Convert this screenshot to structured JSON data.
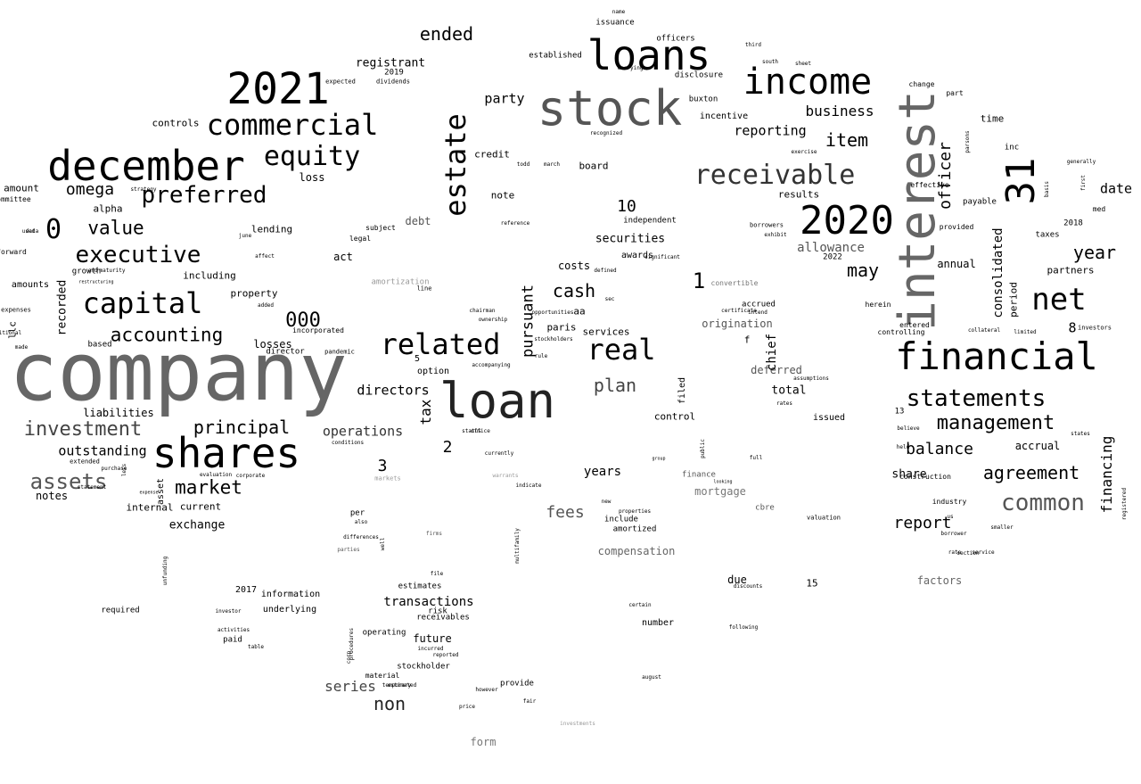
{
  "words": [
    {
      "text": "company",
      "color": "#666666"
    },
    {
      "text": "stock",
      "color": "#555555"
    },
    {
      "text": "loan",
      "color": "#222222"
    },
    {
      "text": "interest",
      "color": "#666666"
    },
    {
      "text": "2021",
      "color": "#000000"
    },
    {
      "text": "december",
      "color": "#000000"
    },
    {
      "text": "shares",
      "color": "#000000"
    },
    {
      "text": "loans",
      "color": "#000000"
    },
    {
      "text": "income",
      "color": "#000000"
    },
    {
      "text": "2020",
      "color": "#000000"
    },
    {
      "text": "31",
      "color": "#000000"
    },
    {
      "text": "financial",
      "color": "#000000"
    },
    {
      "text": "commercial",
      "color": "#000000"
    },
    {
      "text": "capital",
      "color": "#000000"
    },
    {
      "text": "estate",
      "color": "#000000"
    },
    {
      "text": "related",
      "color": "#000000"
    },
    {
      "text": "real",
      "color": "#000000"
    },
    {
      "text": "net",
      "color": "#000000"
    },
    {
      "text": "receivable",
      "color": "#333333"
    },
    {
      "text": "statements",
      "color": "#000000"
    },
    {
      "text": "equity",
      "color": "#000000"
    },
    {
      "text": "preferred",
      "color": "#000000"
    },
    {
      "text": "executive",
      "color": "#000000"
    },
    {
      "text": "management",
      "color": "#000000"
    },
    {
      "text": "common",
      "color": "#555555"
    },
    {
      "text": "accounting",
      "color": "#000000"
    },
    {
      "text": "investment",
      "color": "#444444"
    },
    {
      "text": "assets",
      "color": "#555555"
    },
    {
      "text": "market",
      "color": "#000000"
    },
    {
      "text": "value",
      "color": "#000000"
    },
    {
      "text": "principal",
      "color": "#000000"
    },
    {
      "text": "agreement",
      "color": "#000000"
    },
    {
      "text": "officer",
      "color": "#000000"
    },
    {
      "text": "item",
      "color": "#000000"
    },
    {
      "text": "cash",
      "color": "#000000"
    },
    {
      "text": "may",
      "color": "#000000"
    },
    {
      "text": "year",
      "color": "#000000"
    },
    {
      "text": "balance",
      "color": "#000000"
    },
    {
      "text": "report",
      "color": "#000000"
    },
    {
      "text": "ended",
      "color": "#000000"
    },
    {
      "text": "omega",
      "color": "#000000"
    },
    {
      "text": "0",
      "color": "#000000"
    },
    {
      "text": "000",
      "color": "#000000"
    },
    {
      "text": "non",
      "color": "#222222"
    },
    {
      "text": "plan",
      "color": "#444444"
    },
    {
      "text": "fees",
      "color": "#555555"
    },
    {
      "text": "series",
      "color": "#444444"
    },
    {
      "text": "financing",
      "color": "#000000"
    },
    {
      "text": "business",
      "color": "#000000"
    },
    {
      "text": "reporting",
      "color": "#000000"
    },
    {
      "text": "pursuant",
      "color": "#000000"
    },
    {
      "text": "directors",
      "color": "#000000"
    },
    {
      "text": "operations",
      "color": "#333333"
    },
    {
      "text": "outstanding",
      "color": "#000000"
    },
    {
      "text": "transactions",
      "color": "#000000"
    },
    {
      "text": "party",
      "color": "#000000"
    },
    {
      "text": "consolidated",
      "color": "#000000"
    },
    {
      "text": "allowance",
      "color": "#555555"
    },
    {
      "text": "securities",
      "color": "#000000"
    },
    {
      "text": "registrant",
      "color": "#000000"
    },
    {
      "text": "date",
      "color": "#000000"
    },
    {
      "text": "factors",
      "color": "#666666"
    },
    {
      "text": "form",
      "color": "#777777"
    },
    {
      "text": "tax",
      "color": "#000000"
    },
    {
      "text": "mortgage",
      "color": "#777777"
    },
    {
      "text": "compensation",
      "color": "#666666"
    },
    {
      "text": "origination",
      "color": "#555555"
    },
    {
      "text": "deferred",
      "color": "#555555"
    },
    {
      "text": "years",
      "color": "#000000"
    },
    {
      "text": "share",
      "color": "#000000"
    },
    {
      "text": "liabilities",
      "color": "#000000"
    },
    {
      "text": "notes",
      "color": "#000000"
    },
    {
      "text": "exchange",
      "color": "#000000"
    },
    {
      "text": "chief",
      "color": "#000000"
    },
    {
      "text": "control",
      "color": "#000000"
    },
    {
      "text": "total",
      "color": "#000000"
    },
    {
      "text": "recorded",
      "color": "#000000"
    },
    {
      "text": "including",
      "color": "#000000"
    },
    {
      "text": "losses",
      "color": "#000000"
    },
    {
      "text": "property",
      "color": "#000000"
    },
    {
      "text": "lending",
      "color": "#000000"
    },
    {
      "text": "loss",
      "color": "#000000"
    },
    {
      "text": "act",
      "color": "#000000"
    },
    {
      "text": "future",
      "color": "#000000"
    },
    {
      "text": "due",
      "color": "#000000"
    },
    {
      "text": "costs",
      "color": "#000000"
    },
    {
      "text": "credit",
      "color": "#000000"
    },
    {
      "text": "note",
      "color": "#000000"
    },
    {
      "text": "debt",
      "color": "#555555"
    },
    {
      "text": "awards",
      "color": "#000000"
    },
    {
      "text": "controls",
      "color": "#000000"
    },
    {
      "text": "incentive",
      "color": "#000000"
    },
    {
      "text": "results",
      "color": "#000000"
    },
    {
      "text": "board",
      "color": "#000000"
    },
    {
      "text": "annual",
      "color": "#000000"
    },
    {
      "text": "partners",
      "color": "#000000"
    },
    {
      "text": "accrual",
      "color": "#000000"
    },
    {
      "text": "period",
      "color": "#000000"
    },
    {
      "text": "time",
      "color": "#000000"
    },
    {
      "text": "alpha",
      "color": "#000000"
    },
    {
      "text": "amounts",
      "color": "#000000"
    },
    {
      "text": "amount",
      "color": "#000000"
    },
    {
      "text": "internal",
      "color": "#000000"
    },
    {
      "text": "current",
      "color": "#000000"
    },
    {
      "text": "services",
      "color": "#000000"
    },
    {
      "text": "filed",
      "color": "#000000"
    },
    {
      "text": "issued",
      "color": "#000000"
    },
    {
      "text": "accrued",
      "color": "#000000"
    },
    {
      "text": "option",
      "color": "#000000"
    },
    {
      "text": "information",
      "color": "#000000"
    },
    {
      "text": "underlying",
      "color": "#000000"
    },
    {
      "text": "required",
      "color": "#000000"
    },
    {
      "text": "risk",
      "color": "#000000"
    },
    {
      "text": "receivables",
      "color": "#000000"
    },
    {
      "text": "provide",
      "color": "#000000"
    },
    {
      "text": "number",
      "color": "#000000"
    },
    {
      "text": "amortized",
      "color": "#000000"
    },
    {
      "text": "include",
      "color": "#000000"
    },
    {
      "text": "paid",
      "color": "#000000"
    },
    {
      "text": "operating",
      "color": "#000000"
    },
    {
      "text": "stockholder",
      "color": "#000000"
    },
    {
      "text": "llc",
      "color": "#000000"
    },
    {
      "text": "based",
      "color": "#000000"
    },
    {
      "text": "growth",
      "color": "#000000"
    },
    {
      "text": "director",
      "color": "#000000"
    },
    {
      "text": "issuance",
      "color": "#000000"
    },
    {
      "text": "buxton",
      "color": "#000000"
    },
    {
      "text": "disclosure",
      "color": "#000000"
    },
    {
      "text": "officers",
      "color": "#000000"
    },
    {
      "text": "established",
      "color": "#000000"
    },
    {
      "text": "2019",
      "color": "#000000"
    },
    {
      "text": "expected",
      "color": "#000000"
    },
    {
      "text": "dividends",
      "color": "#000000"
    },
    {
      "text": "independent",
      "color": "#000000"
    },
    {
      "text": "10",
      "color": "#000000"
    },
    {
      "text": "1",
      "color": "#000000"
    },
    {
      "text": "2",
      "color": "#000000"
    },
    {
      "text": "3",
      "color": "#000000"
    },
    {
      "text": "5",
      "color": "#000000"
    },
    {
      "text": "8",
      "color": "#000000"
    },
    {
      "text": "15",
      "color": "#000000"
    },
    {
      "text": "13",
      "color": "#000000"
    },
    {
      "text": "2017",
      "color": "#000000"
    },
    {
      "text": "2018",
      "color": "#000000"
    },
    {
      "text": "2022",
      "color": "#000000"
    },
    {
      "text": "paris",
      "color": "#000000"
    },
    {
      "text": "aa",
      "color": "#000000"
    },
    {
      "text": "f",
      "color": "#000000"
    },
    {
      "text": "per",
      "color": "#000000"
    },
    {
      "text": "industry",
      "color": "#000000"
    },
    {
      "text": "construction",
      "color": "#000000"
    },
    {
      "text": "entered",
      "color": "#000000"
    },
    {
      "text": "herein",
      "color": "#000000"
    },
    {
      "text": "payable",
      "color": "#000000"
    },
    {
      "text": "effective",
      "color": "#000000"
    },
    {
      "text": "inc",
      "color": "#000000"
    },
    {
      "text": "med",
      "color": "#000000"
    },
    {
      "text": "taxes",
      "color": "#000000"
    },
    {
      "text": "provided",
      "color": "#000000"
    },
    {
      "text": "part",
      "color": "#000000"
    },
    {
      "text": "change",
      "color": "#000000"
    },
    {
      "text": "convertible",
      "color": "#777777"
    },
    {
      "text": "finance",
      "color": "#555555"
    },
    {
      "text": "amortization",
      "color": "#999999"
    },
    {
      "text": "line",
      "color": "#000000"
    },
    {
      "text": "cbre",
      "color": "#555555"
    },
    {
      "text": "estimates",
      "color": "#000000"
    },
    {
      "text": "material",
      "color": "#000000"
    },
    {
      "text": "temporary",
      "color": "#000000"
    },
    {
      "text": "procedures",
      "color": "#000000"
    },
    {
      "text": "forward",
      "color": "#000000"
    },
    {
      "text": "committee",
      "color": "#000000"
    },
    {
      "text": "expenses",
      "color": "#000000"
    },
    {
      "text": "incorporated",
      "color": "#000000"
    },
    {
      "text": "pandemic",
      "color": "#000000"
    },
    {
      "text": "conditions",
      "color": "#000000"
    },
    {
      "text": "extended",
      "color": "#000000"
    },
    {
      "text": "statement",
      "color": "#000000"
    },
    {
      "text": "expense",
      "color": "#000000"
    },
    {
      "text": "office",
      "color": "#000000"
    },
    {
      "text": "status",
      "color": "#000000"
    },
    {
      "text": "currently",
      "color": "#000000"
    },
    {
      "text": "warrants",
      "color": "#999999"
    },
    {
      "text": "markets",
      "color": "#999999"
    },
    {
      "text": "indicate",
      "color": "#000000"
    },
    {
      "text": "new",
      "color": "#000000"
    },
    {
      "text": "properties",
      "color": "#000000"
    },
    {
      "text": "certain",
      "color": "#000000"
    },
    {
      "text": "following",
      "color": "#000000"
    },
    {
      "text": "discounts",
      "color": "#000000"
    },
    {
      "text": "august",
      "color": "#000000"
    },
    {
      "text": "fair",
      "color": "#000000"
    },
    {
      "text": "however",
      "color": "#000000"
    },
    {
      "text": "price",
      "color": "#000000"
    },
    {
      "text": "file",
      "color": "#000000"
    },
    {
      "text": "investor",
      "color": "#000000"
    },
    {
      "text": "activities",
      "color": "#000000"
    },
    {
      "text": "table",
      "color": "#000000"
    },
    {
      "text": "incurred",
      "color": "#000000"
    },
    {
      "text": "reported",
      "color": "#000000"
    },
    {
      "text": "estimated",
      "color": "#000000"
    },
    {
      "text": "corp",
      "color": "#000000"
    },
    {
      "text": "multifamily",
      "color": "#000000"
    },
    {
      "text": "also",
      "color": "#000000"
    },
    {
      "text": "public",
      "color": "#000000"
    },
    {
      "text": "looking",
      "color": "#000000"
    },
    {
      "text": "full",
      "color": "#000000"
    },
    {
      "text": "group",
      "color": "#000000"
    },
    {
      "text": "legal",
      "color": "#000000"
    },
    {
      "text": "subject",
      "color": "#000000"
    },
    {
      "text": "june",
      "color": "#000000"
    },
    {
      "text": "restructuring",
      "color": "#000000"
    },
    {
      "text": "additional",
      "color": "#000000"
    },
    {
      "text": "made",
      "color": "#000000"
    },
    {
      "text": "end",
      "color": "#000000"
    },
    {
      "text": "maturity",
      "color": "#000000"
    },
    {
      "text": "affect",
      "color": "#000000"
    },
    {
      "text": "added",
      "color": "#000000"
    },
    {
      "text": "strategy",
      "color": "#000000"
    },
    {
      "text": "used",
      "color": "#000000"
    },
    {
      "text": "data",
      "color": "#000000"
    },
    {
      "text": "reference",
      "color": "#000000"
    },
    {
      "text": "defined",
      "color": "#000000"
    },
    {
      "text": "significant",
      "color": "#000000"
    },
    {
      "text": "sec",
      "color": "#000000"
    },
    {
      "text": "chairman",
      "color": "#000000"
    },
    {
      "text": "ownership",
      "color": "#000000"
    },
    {
      "text": "accompanying",
      "color": "#000000"
    },
    {
      "text": "rule",
      "color": "#000000"
    },
    {
      "text": "stockholders",
      "color": "#000000"
    },
    {
      "text": "opportunities",
      "color": "#000000"
    },
    {
      "text": "certificate",
      "color": "#000000"
    },
    {
      "text": "intend",
      "color": "#000000"
    },
    {
      "text": "recognized",
      "color": "#000000"
    },
    {
      "text": "carrying",
      "color": "#000000"
    },
    {
      "text": "name",
      "color": "#000000"
    },
    {
      "text": "south",
      "color": "#000000"
    },
    {
      "text": "third",
      "color": "#000000"
    },
    {
      "text": "sheet",
      "color": "#000000"
    },
    {
      "text": "exercise",
      "color": "#000000"
    },
    {
      "text": "march",
      "color": "#000000"
    },
    {
      "text": "todd",
      "color": "#000000"
    },
    {
      "text": "borrowers",
      "color": "#000000"
    },
    {
      "text": "exhibit",
      "color": "#000000"
    },
    {
      "text": "assumptions",
      "color": "#000000"
    },
    {
      "text": "rates",
      "color": "#000000"
    },
    {
      "text": "valuation",
      "color": "#000000"
    },
    {
      "text": "controlling",
      "color": "#000000"
    },
    {
      "text": "believe",
      "color": "#000000"
    },
    {
      "text": "held",
      "color": "#000000"
    },
    {
      "text": "us",
      "color": "#000000"
    },
    {
      "text": "borrower",
      "color": "#000000"
    },
    {
      "text": "section",
      "color": "#000000"
    },
    {
      "text": "collateral",
      "color": "#000000"
    },
    {
      "text": "limited",
      "color": "#000000"
    },
    {
      "text": "investors",
      "color": "#000000"
    },
    {
      "text": "states",
      "color": "#000000"
    },
    {
      "text": "generally",
      "color": "#000000"
    },
    {
      "text": "basis",
      "color": "#000000"
    },
    {
      "text": "first",
      "color": "#000000"
    },
    {
      "text": "registered",
      "color": "#000000"
    },
    {
      "text": "parsons",
      "color": "#000000"
    },
    {
      "text": "rate",
      "color": "#000000"
    },
    {
      "text": "service",
      "color": "#000000"
    },
    {
      "text": "smaller",
      "color": "#000000"
    },
    {
      "text": "evaluation",
      "color": "#000000"
    },
    {
      "text": "corporate",
      "color": "#000000"
    },
    {
      "text": "purchase",
      "color": "#000000"
    },
    {
      "text": "unfunding",
      "color": "#000000"
    },
    {
      "text": "less",
      "color": "#000000"
    },
    {
      "text": "asset",
      "color": "#000000"
    },
    {
      "text": "well",
      "color": "#000000"
    },
    {
      "text": "differences",
      "color": "#000000"
    },
    {
      "text": "parties",
      "color": "#555555"
    },
    {
      "text": "firms",
      "color": "#555555"
    },
    {
      "text": "investments",
      "color": "#999999"
    }
  ]
}
